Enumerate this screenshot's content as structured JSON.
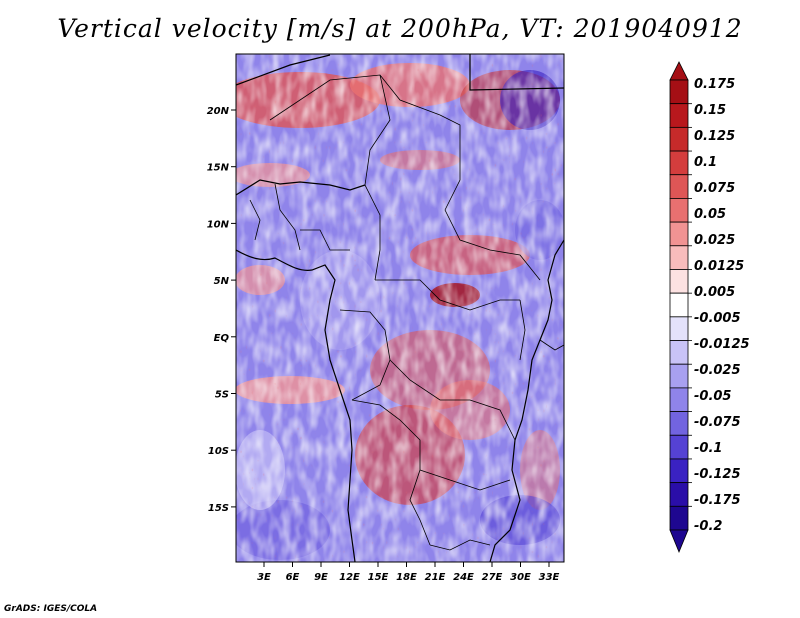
{
  "title": "Vertical velocity [m/s] at 200hPa, VT: 2019040912",
  "credit": "GrADS: IGES/COLA",
  "map": {
    "lon_ticks": [
      "3E",
      "6E",
      "9E",
      "12E",
      "15E",
      "18E",
      "21E",
      "24E",
      "27E",
      "30E",
      "33E"
    ],
    "lat_ticks": [
      "20N",
      "15N",
      "10N",
      "5N",
      "EQ",
      "5S",
      "10S",
      "15S"
    ],
    "lon_range": [
      0,
      35
    ],
    "lat_range": [
      -19,
      25
    ]
  },
  "colorbar": {
    "levels": [
      "0.175",
      "0.15",
      "0.125",
      "0.1",
      "0.075",
      "0.05",
      "0.025",
      "0.0125",
      "0.005",
      "-0.005",
      "-0.0125",
      "-0.025",
      "-0.05",
      "-0.075",
      "-0.1",
      "-0.125",
      "-0.175",
      "-0.2"
    ],
    "colors": [
      "#a50f15",
      "#b8181d",
      "#c62a2a",
      "#d43d3d",
      "#de5656",
      "#e87070",
      "#f19393",
      "#f8bcbc",
      "#fde2e2",
      "#ffffff",
      "#e4e2fb",
      "#c9c3f7",
      "#a8a0f0",
      "#8f84ea",
      "#7264e0",
      "#5542d4",
      "#3a22c2",
      "#2a0ea8",
      "#1e0790"
    ],
    "arrow_top_color": "#a50f15",
    "arrow_bottom_color": "#1e0790"
  }
}
